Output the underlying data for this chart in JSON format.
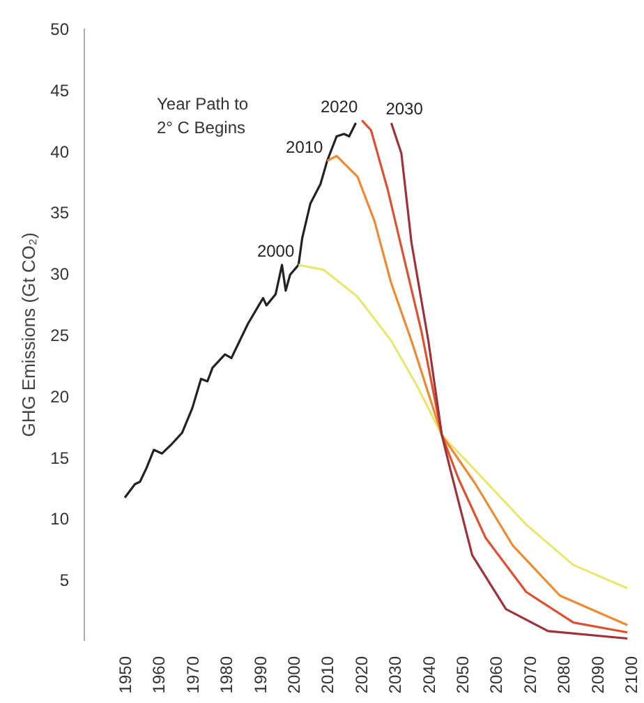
{
  "chart_data": {
    "type": "line",
    "ylabel": "GHG Emissions (Gt CO₂)",
    "annotations": [
      "Year Path to\n2° C Begins"
    ],
    "xlim": [
      1938,
      2100
    ],
    "ylim": [
      0,
      50
    ],
    "xticks": [
      1950,
      1960,
      1970,
      1980,
      1990,
      2000,
      2010,
      2020,
      2030,
      2040,
      2050,
      2060,
      2070,
      2080,
      2090,
      2100
    ],
    "yticks": [
      5,
      10,
      15,
      20,
      25,
      30,
      35,
      40,
      45,
      50
    ],
    "grid": false,
    "legend": false,
    "marker": "none",
    "line_style": "solid",
    "series": [
      {
        "color": "#222222",
        "x": [
          1950,
          1953,
          1954.5,
          1956.4,
          1958.6,
          1961,
          1964,
          1967,
          1970,
          1972.6,
          1974.5,
          1976,
          1979.7,
          1981.6,
          1986.5,
          1991,
          1992,
          1994.7,
          1996.6,
          1997.7,
          1999,
          2001.5,
          2002.6,
          2005,
          2008,
          2010,
          2012.8,
          2015,
          2016.5,
          2018.5
        ],
        "values": [
          11.7,
          12.8,
          13.0,
          14.1,
          15.6,
          15.3,
          16.1,
          17.0,
          19.0,
          21.4,
          21.2,
          22.3,
          23.4,
          23.1,
          25.9,
          28.0,
          27.4,
          28.3,
          30.7,
          28.6,
          29.9,
          30.7,
          32.9,
          35.7,
          37.3,
          39.2,
          41.2,
          41.4,
          41.2,
          42.3
        ]
      },
      {
        "name": "2000",
        "color": "#e8e870",
        "x": [
          2001.5,
          2009,
          2019,
          2029,
          2036.5,
          2044,
          2054,
          2069,
          2083,
          2099
        ],
        "values": [
          30.7,
          30.3,
          28.1,
          24.5,
          20.9,
          16.8,
          13.9,
          9.5,
          6.2,
          4.3
        ]
      },
      {
        "name": "2010",
        "color": "#f08a30",
        "x": [
          2010,
          2012.8,
          2019,
          2024,
          2029,
          2035,
          2044,
          2054,
          2065,
          2079,
          2099
        ],
        "values": [
          39.2,
          39.6,
          37.9,
          34.3,
          29.2,
          24.5,
          16.8,
          12.8,
          7.8,
          3.7,
          1.3
        ]
      },
      {
        "name": "2020",
        "color": "#e05030",
        "x": [
          2020.3,
          2023,
          2028,
          2033,
          2038,
          2044,
          2049,
          2057,
          2069,
          2083,
          2099
        ],
        "values": [
          42.5,
          41.7,
          36.8,
          31.0,
          25.2,
          16.8,
          13.2,
          8.4,
          4.0,
          1.5,
          0.7
        ]
      },
      {
        "name": "2030",
        "color": "#a0303a",
        "x": [
          2029,
          2032,
          2035,
          2040,
          2044,
          2046.6,
          2053,
          2063,
          2075.5,
          2099
        ],
        "values": [
          42.3,
          39.8,
          32.5,
          24.5,
          16.8,
          13.9,
          7.0,
          2.6,
          0.8,
          0.2
        ]
      }
    ]
  }
}
